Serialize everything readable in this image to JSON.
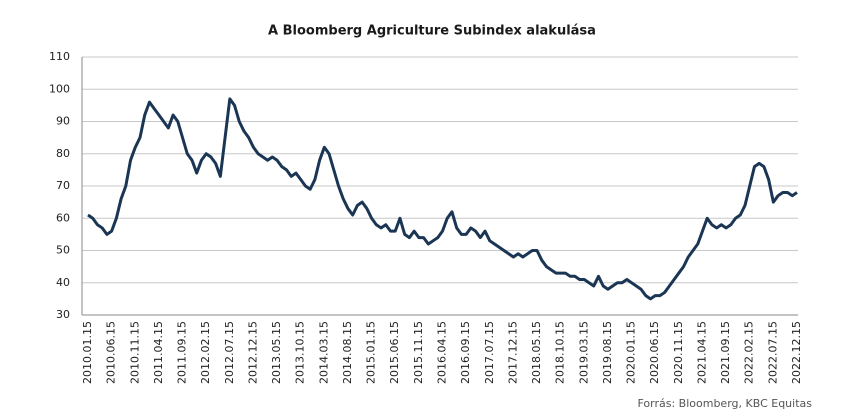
{
  "chart_data": {
    "type": "line",
    "title": "A Bloomberg Agriculture Subindex  alakulása",
    "source": "Forrás: Bloomberg,  KBC Equitas",
    "categories": [
      "2010.01.15",
      null,
      null,
      null,
      null,
      "2010.06.15",
      null,
      null,
      null,
      null,
      "2010.11.15",
      null,
      null,
      null,
      null,
      "2011.04.15",
      null,
      null,
      null,
      null,
      "2011.09.15",
      null,
      null,
      null,
      null,
      "2012.02.15",
      null,
      null,
      null,
      null,
      "2012.07.15",
      null,
      null,
      null,
      null,
      "2012.12.15",
      null,
      null,
      null,
      null,
      "2013.05.15",
      null,
      null,
      null,
      null,
      "2013.10.15",
      null,
      null,
      null,
      null,
      "2014.03.15",
      null,
      null,
      null,
      null,
      "2014.08.15",
      null,
      null,
      null,
      null,
      "2015.01.15",
      null,
      null,
      null,
      null,
      "2015.06.15",
      null,
      null,
      null,
      null,
      "2015.11.15",
      null,
      null,
      null,
      null,
      "2016.04.15",
      null,
      null,
      null,
      null,
      "2016.09.15",
      null,
      null,
      null,
      null,
      "2017.07.15",
      null,
      null,
      null,
      null,
      "2017.12.15",
      null,
      null,
      null,
      null,
      "2018.05.15",
      null,
      null,
      null,
      null,
      "2018.10.15",
      null,
      null,
      null,
      null,
      "2019.03.15",
      null,
      null,
      null,
      null,
      "2019.08.15",
      null,
      null,
      null,
      null,
      "2020.01.15",
      null,
      null,
      null,
      null,
      "2020.06.15",
      null,
      null,
      null,
      null,
      "2020.11.15",
      null,
      null,
      null,
      null,
      "2021.04.15",
      null,
      null,
      null,
      null,
      "2021.09.15",
      null,
      null,
      null,
      null,
      "2022.02.15",
      null,
      null,
      null,
      null,
      "2022.07.15",
      null,
      null,
      null,
      null,
      "2022.12.15"
    ],
    "series": [
      {
        "name": "Bloomberg Agriculture Subindex",
        "color": "#1b3654",
        "values": [
          61,
          60,
          58,
          57,
          55,
          56,
          60,
          66,
          70,
          78,
          82,
          85,
          92,
          96,
          94,
          92,
          90,
          88,
          92,
          90,
          85,
          80,
          78,
          74,
          78,
          80,
          79,
          77,
          73,
          85,
          97,
          95,
          90,
          87,
          85,
          82,
          80,
          79,
          78,
          79,
          78,
          76,
          75,
          73,
          74,
          72,
          70,
          69,
          72,
          78,
          82,
          80,
          75,
          70,
          66,
          63,
          61,
          64,
          65,
          63,
          60,
          58,
          57,
          58,
          56,
          56,
          60,
          55,
          54,
          56,
          54,
          54,
          52,
          53,
          54,
          56,
          60,
          62,
          57,
          55,
          55,
          57,
          56,
          54,
          56,
          53,
          52,
          51,
          50,
          49,
          48,
          49,
          48,
          49,
          50,
          50,
          47,
          45,
          44,
          43,
          43,
          43,
          42,
          42,
          41,
          41,
          40,
          39,
          42,
          39,
          38,
          39,
          40,
          40,
          41,
          40,
          39,
          38,
          36,
          35,
          36,
          36,
          37,
          39,
          41,
          43,
          45,
          48,
          50,
          52,
          56,
          60,
          58,
          57,
          58,
          57,
          58,
          60,
          61,
          64,
          70,
          76,
          77,
          76,
          72,
          65,
          67,
          68,
          68,
          67,
          68
        ]
      }
    ],
    "ylim": [
      30,
      110
    ],
    "yticks": [
      30,
      40,
      50,
      60,
      70,
      80,
      90,
      100,
      110
    ],
    "grid": true
  }
}
